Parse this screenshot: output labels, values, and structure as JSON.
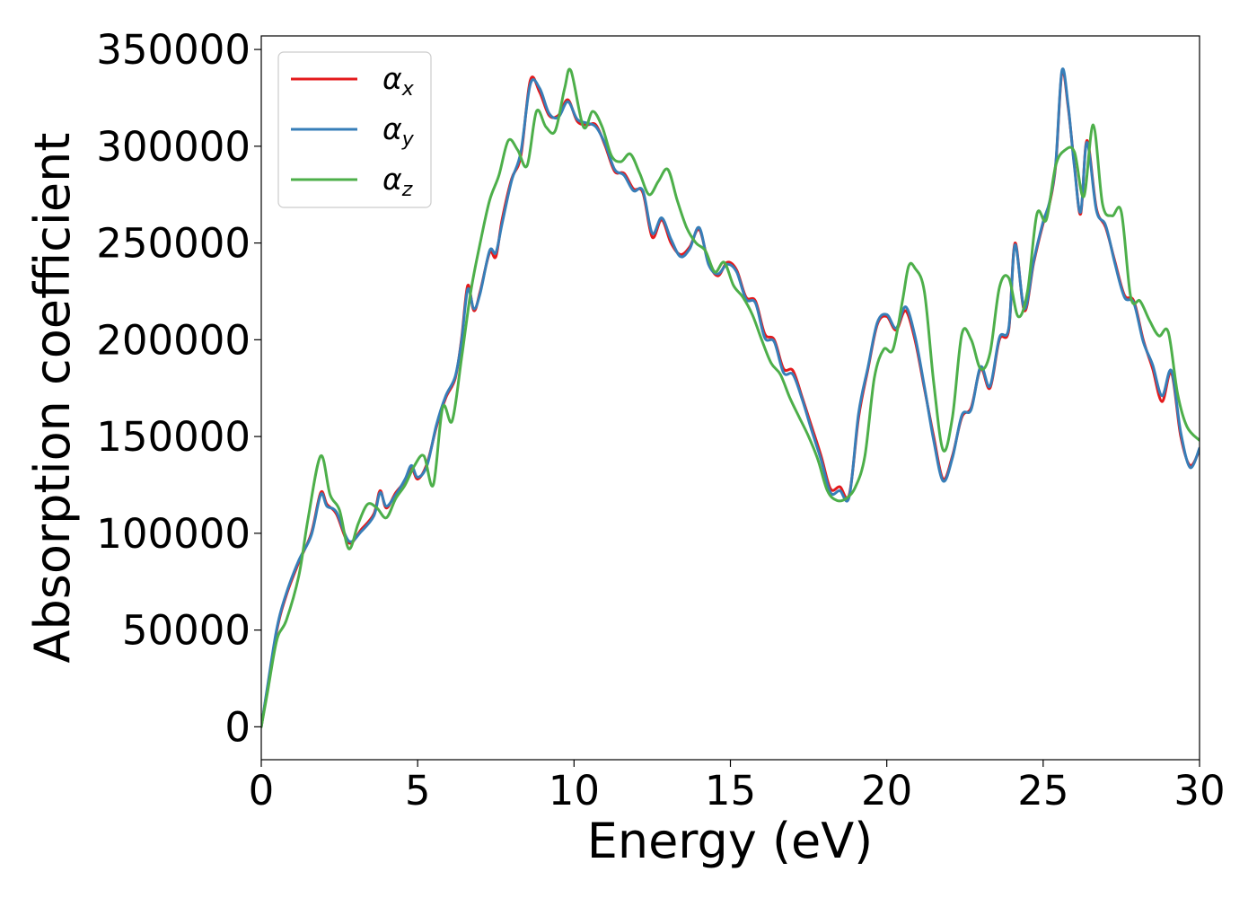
{
  "chart_data": {
    "type": "line",
    "title": "",
    "xlabel": "Energy (eV)",
    "ylabel": "Absorption coefficient",
    "xlim": [
      0,
      30
    ],
    "ylim": [
      -17000,
      357000
    ],
    "xticks": [
      0,
      5,
      10,
      15,
      20,
      25,
      30
    ],
    "yticks": [
      0,
      50000,
      100000,
      150000,
      200000,
      250000,
      300000,
      350000
    ],
    "grid": false,
    "legend_position": "top-left",
    "series": [
      {
        "name": "αx",
        "legend_symbol": "α",
        "legend_subscript": "x",
        "color": "#e41a1c",
        "x": [
          0,
          0.2,
          0.5,
          0.8,
          1.2,
          1.6,
          1.9,
          2.1,
          2.4,
          2.8,
          3.2,
          3.6,
          3.8,
          4.0,
          4.3,
          4.6,
          4.8,
          5.0,
          5.3,
          5.6,
          5.9,
          6.2,
          6.4,
          6.6,
          6.8,
          7.0,
          7.3,
          7.5,
          7.7,
          8.0,
          8.3,
          8.6,
          8.9,
          9.2,
          9.5,
          9.8,
          10.1,
          10.4,
          10.7,
          11.0,
          11.3,
          11.6,
          11.9,
          12.2,
          12.5,
          12.8,
          13.1,
          13.4,
          13.7,
          14.0,
          14.3,
          14.6,
          14.9,
          15.2,
          15.5,
          15.8,
          16.1,
          16.4,
          16.7,
          17.0,
          17.3,
          17.6,
          17.9,
          18.2,
          18.5,
          18.8,
          19.1,
          19.4,
          19.7,
          20.0,
          20.3,
          20.6,
          20.9,
          21.2,
          21.5,
          21.8,
          22.1,
          22.4,
          22.7,
          23.0,
          23.3,
          23.6,
          23.9,
          24.1,
          24.4,
          24.7,
          25.0,
          25.2,
          25.4,
          25.6,
          25.8,
          26.0,
          26.2,
          26.4,
          26.7,
          27.0,
          27.3,
          27.6,
          27.9,
          28.2,
          28.5,
          28.8,
          29.1,
          29.4,
          29.7,
          30.0
        ],
        "values": [
          0,
          20000,
          50000,
          68000,
          85000,
          100000,
          121000,
          115000,
          110000,
          95000,
          102000,
          110000,
          122000,
          113000,
          121000,
          127000,
          134000,
          128000,
          136000,
          155000,
          170000,
          180000,
          200000,
          228000,
          215000,
          225000,
          245000,
          243000,
          262000,
          283000,
          295000,
          334000,
          328000,
          316000,
          316000,
          324000,
          313000,
          311000,
          311000,
          300000,
          287000,
          286000,
          278000,
          276000,
          253000,
          262000,
          250000,
          244000,
          248000,
          257000,
          240000,
          233000,
          240000,
          236000,
          222000,
          220000,
          203000,
          200000,
          185000,
          184000,
          170000,
          155000,
          140000,
          123000,
          124000,
          120000,
          160000,
          185000,
          208000,
          212000,
          205000,
          215000,
          200000,
          175000,
          150000,
          128000,
          140000,
          160000,
          165000,
          185000,
          175000,
          200000,
          205000,
          250000,
          215000,
          240000,
          260000,
          270000,
          290000,
          338000,
          320000,
          290000,
          265000,
          303000,
          268000,
          258000,
          240000,
          223000,
          220000,
          200000,
          185000,
          168000,
          183000,
          150000,
          135000,
          143000
        ]
      },
      {
        "name": "αy",
        "legend_symbol": "α",
        "legend_subscript": "y",
        "color": "#377eb8",
        "x": [
          0,
          0.2,
          0.5,
          0.8,
          1.2,
          1.6,
          1.9,
          2.1,
          2.4,
          2.8,
          3.2,
          3.6,
          3.8,
          4.0,
          4.3,
          4.6,
          4.8,
          5.0,
          5.3,
          5.6,
          5.9,
          6.2,
          6.4,
          6.6,
          6.8,
          7.0,
          7.3,
          7.5,
          7.7,
          8.0,
          8.3,
          8.6,
          8.9,
          9.2,
          9.5,
          9.8,
          10.1,
          10.4,
          10.7,
          11.0,
          11.3,
          11.6,
          11.9,
          12.2,
          12.5,
          12.8,
          13.1,
          13.4,
          13.7,
          14.0,
          14.3,
          14.6,
          14.9,
          15.2,
          15.5,
          15.8,
          16.1,
          16.4,
          16.7,
          17.0,
          17.3,
          17.6,
          17.9,
          18.2,
          18.5,
          18.8,
          19.1,
          19.4,
          19.7,
          20.0,
          20.3,
          20.6,
          20.9,
          21.2,
          21.5,
          21.8,
          22.1,
          22.4,
          22.7,
          23.0,
          23.3,
          23.6,
          23.9,
          24.1,
          24.4,
          24.7,
          25.0,
          25.2,
          25.4,
          25.6,
          25.8,
          26.0,
          26.2,
          26.4,
          26.7,
          27.0,
          27.3,
          27.6,
          27.9,
          28.2,
          28.5,
          28.8,
          29.1,
          29.4,
          29.7,
          30.0
        ],
        "values": [
          0,
          21000,
          51000,
          69000,
          86000,
          99000,
          120000,
          114000,
          111000,
          96000,
          101000,
          109000,
          121000,
          114000,
          120000,
          128000,
          135000,
          129000,
          135000,
          156000,
          171000,
          181000,
          199000,
          226000,
          216000,
          224000,
          246000,
          245000,
          260000,
          282000,
          297000,
          332000,
          330000,
          317000,
          315000,
          323000,
          314000,
          312000,
          310000,
          301000,
          288000,
          285000,
          277000,
          277000,
          255000,
          263000,
          252000,
          243000,
          247000,
          258000,
          239000,
          234000,
          239000,
          235000,
          221000,
          219000,
          201000,
          199000,
          183000,
          182000,
          169000,
          153000,
          138000,
          121000,
          122000,
          119000,
          162000,
          186000,
          209000,
          213000,
          206000,
          217000,
          202000,
          176000,
          148000,
          127000,
          139000,
          161000,
          164000,
          186000,
          176000,
          201000,
          206000,
          249000,
          216000,
          241000,
          261000,
          271000,
          291000,
          339000,
          321000,
          289000,
          266000,
          302000,
          267000,
          259000,
          239000,
          222000,
          219000,
          199000,
          187000,
          171000,
          184000,
          152000,
          134000,
          144000
        ]
      },
      {
        "name": "αz",
        "legend_symbol": "α",
        "legend_subscript": "z",
        "color": "#4daf4a",
        "x": [
          0,
          0.2,
          0.5,
          0.8,
          1.2,
          1.5,
          1.9,
          2.2,
          2.5,
          2.8,
          3.1,
          3.4,
          3.7,
          4.0,
          4.3,
          4.6,
          4.9,
          5.2,
          5.5,
          5.8,
          6.1,
          6.4,
          6.7,
          7.0,
          7.3,
          7.6,
          7.9,
          8.2,
          8.5,
          8.8,
          9.1,
          9.4,
          9.7,
          9.9,
          10.3,
          10.6,
          10.9,
          11.2,
          11.5,
          11.8,
          12.1,
          12.4,
          12.7,
          13.0,
          13.3,
          13.6,
          13.9,
          14.2,
          14.5,
          14.8,
          15.1,
          15.4,
          15.7,
          16.0,
          16.3,
          16.6,
          16.9,
          17.2,
          17.5,
          17.8,
          18.1,
          18.4,
          18.7,
          19.0,
          19.3,
          19.6,
          19.9,
          20.2,
          20.5,
          20.7,
          20.9,
          21.2,
          21.5,
          21.8,
          22.1,
          22.4,
          22.7,
          23.0,
          23.3,
          23.6,
          23.9,
          24.2,
          24.5,
          24.8,
          25.1,
          25.4,
          25.7,
          26.0,
          26.3,
          26.6,
          26.9,
          27.2,
          27.5,
          27.8,
          28.1,
          28.4,
          28.7,
          29.0,
          29.3,
          29.6,
          30.0
        ],
        "values": [
          0,
          18000,
          45000,
          55000,
          78000,
          108000,
          140000,
          120000,
          112000,
          92000,
          105000,
          115000,
          113000,
          108000,
          118000,
          125000,
          135000,
          140000,
          125000,
          165000,
          158000,
          190000,
          225000,
          250000,
          272000,
          285000,
          303000,
          298000,
          290000,
          318000,
          310000,
          308000,
          330000,
          339000,
          310000,
          318000,
          310000,
          295000,
          292000,
          296000,
          286000,
          275000,
          282000,
          288000,
          272000,
          258000,
          250000,
          246000,
          235000,
          240000,
          228000,
          222000,
          213000,
          200000,
          188000,
          182000,
          170000,
          160000,
          150000,
          138000,
          122000,
          117000,
          118000,
          124000,
          140000,
          180000,
          195000,
          195000,
          220000,
          238000,
          237000,
          225000,
          178000,
          143000,
          160000,
          203000,
          200000,
          185000,
          193000,
          227000,
          232000,
          212000,
          225000,
          265000,
          262000,
          290000,
          298000,
          297000,
          274000,
          311000,
          270000,
          264000,
          266000,
          222000,
          220000,
          210000,
          202000,
          204000,
          172000,
          155000,
          148000
        ]
      }
    ]
  }
}
